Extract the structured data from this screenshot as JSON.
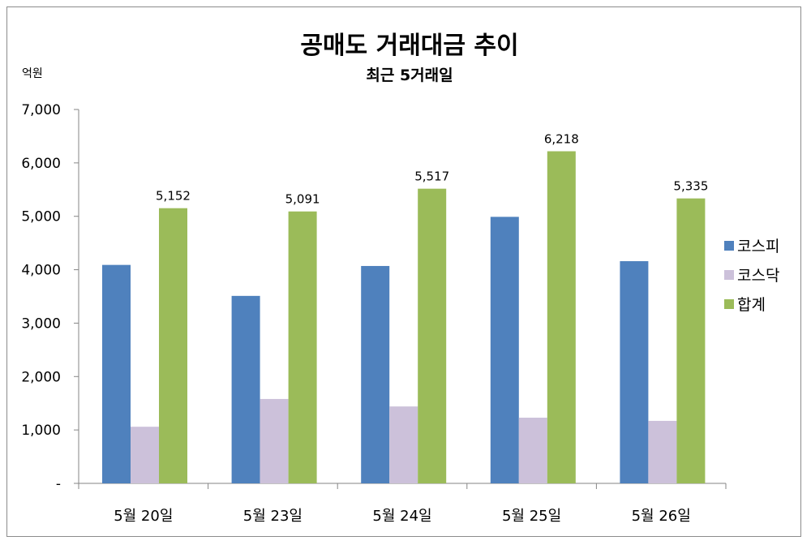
{
  "chart_data": {
    "type": "bar",
    "title": "공매도 거래대금 추이",
    "subtitle": "최근 5거래일",
    "unit_label": "억원",
    "categories": [
      "5월 20일",
      "5월 23일",
      "5월 24일",
      "5월 25일",
      "5월 26일"
    ],
    "series": [
      {
        "name": "코스피",
        "color": "#4f81bd",
        "values": [
          4090,
          3510,
          4070,
          4990,
          4160
        ]
      },
      {
        "name": "코스닥",
        "color": "#ccc1da",
        "values": [
          1060,
          1580,
          1440,
          1230,
          1170
        ]
      },
      {
        "name": "합계",
        "color": "#9bbb59",
        "values": [
          5152,
          5091,
          5517,
          6218,
          5335
        ],
        "data_labels": [
          "5,152",
          "5,091",
          "5,517",
          "6,218",
          "5,335"
        ]
      }
    ],
    "ylim": [
      0,
      7000
    ],
    "yticks": [
      0,
      1000,
      2000,
      3000,
      4000,
      5000,
      6000,
      7000
    ],
    "ytick_labels": [
      "-",
      "1,000",
      "2,000",
      "3,000",
      "4,000",
      "5,000",
      "6,000",
      "7,000"
    ],
    "grid": false,
    "legend_position": "right"
  }
}
